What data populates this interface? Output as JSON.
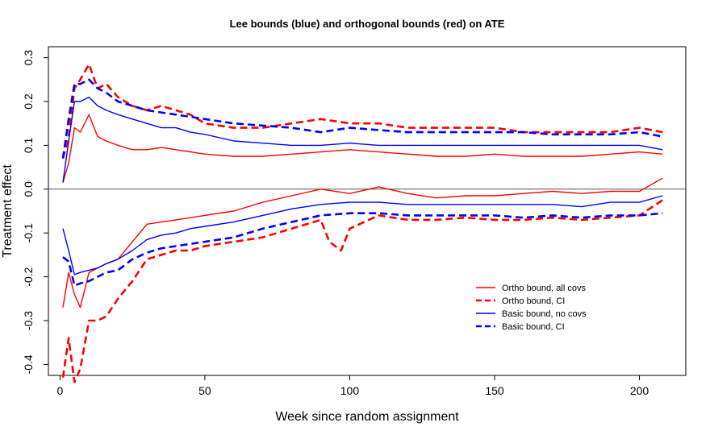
{
  "chart_data": {
    "type": "line",
    "title": "Lee bounds (blue) and orthogonal bounds (red) on ATE",
    "xlabel": "Week since random assignment",
    "ylabel": "Treatment effect",
    "xlim": [
      -4,
      216
    ],
    "ylim": [
      -0.425,
      0.325
    ],
    "x_ticks": [
      0,
      50,
      100,
      150,
      200
    ],
    "x_tick_labels": [
      "0",
      "50",
      "100",
      "150",
      "200"
    ],
    "y_ticks": [
      0.3,
      0.2,
      0.1,
      0.0,
      -0.1,
      -0.2,
      -0.3,
      -0.4
    ],
    "y_tick_labels": [
      "0.3",
      "0.2",
      "0.1",
      "0.0",
      "-0.1",
      "-0.2",
      "-0.3",
      "-0.4"
    ],
    "reference_line_y": 0,
    "legend_position": "lower-right",
    "legend": [
      {
        "label": "Ortho bound, all covs",
        "color": "#ff0000",
        "style": "solid"
      },
      {
        "label": "Ortho bound, CI",
        "color": "#ff0000",
        "style": "dashed"
      },
      {
        "label": "Basic bound, no covs",
        "color": "#0000ff",
        "style": "solid"
      },
      {
        "label": "Basic bound, CI",
        "color": "#0000ff",
        "style": "dashed"
      }
    ],
    "series": [
      {
        "group": "Ortho bound, all covs",
        "color": "#ff0000",
        "style": "solid",
        "x": [
          1,
          3,
          5,
          7,
          10,
          13,
          16,
          20,
          25,
          30,
          35,
          40,
          45,
          50,
          60,
          70,
          80,
          90,
          100,
          110,
          120,
          130,
          140,
          150,
          160,
          170,
          180,
          190,
          200,
          208
        ],
        "y": [
          0.015,
          0.06,
          0.14,
          0.13,
          0.17,
          0.12,
          0.11,
          0.1,
          0.09,
          0.09,
          0.095,
          0.09,
          0.085,
          0.08,
          0.075,
          0.075,
          0.08,
          0.085,
          0.09,
          0.085,
          0.08,
          0.075,
          0.075,
          0.08,
          0.075,
          0.075,
          0.075,
          0.08,
          0.085,
          0.08
        ]
      },
      {
        "group": "Ortho bound, all covs",
        "color": "#ff0000",
        "style": "solid",
        "x": [
          1,
          3,
          5,
          7,
          10,
          13,
          16,
          20,
          25,
          30,
          35,
          40,
          45,
          50,
          60,
          70,
          80,
          90,
          100,
          110,
          120,
          130,
          140,
          150,
          160,
          170,
          180,
          190,
          200,
          208
        ],
        "y": [
          -0.27,
          -0.19,
          -0.24,
          -0.27,
          -0.19,
          -0.18,
          -0.17,
          -0.16,
          -0.12,
          -0.08,
          -0.075,
          -0.07,
          -0.065,
          -0.06,
          -0.05,
          -0.03,
          -0.015,
          0.0,
          -0.01,
          0.005,
          -0.01,
          -0.02,
          -0.015,
          -0.015,
          -0.01,
          -0.005,
          -0.01,
          -0.005,
          -0.005,
          0.025
        ]
      },
      {
        "group": "Ortho bound, CI",
        "color": "#ff0000",
        "style": "dashed",
        "x": [
          1,
          3,
          5,
          7,
          10,
          13,
          16,
          20,
          25,
          30,
          35,
          40,
          45,
          50,
          60,
          70,
          80,
          90,
          100,
          110,
          120,
          130,
          140,
          150,
          160,
          170,
          180,
          190,
          200,
          208
        ],
        "y": [
          0.07,
          0.12,
          0.23,
          0.25,
          0.285,
          0.23,
          0.24,
          0.21,
          0.19,
          0.18,
          0.19,
          0.18,
          0.17,
          0.15,
          0.14,
          0.14,
          0.15,
          0.16,
          0.15,
          0.15,
          0.14,
          0.14,
          0.14,
          0.14,
          0.13,
          0.13,
          0.13,
          0.13,
          0.14,
          0.13
        ]
      },
      {
        "group": "Ortho bound, CI",
        "color": "#ff0000",
        "style": "dashed",
        "x": [
          1,
          3,
          5,
          7,
          10,
          13,
          16,
          20,
          25,
          30,
          35,
          40,
          45,
          50,
          60,
          70,
          80,
          90,
          93,
          97,
          100,
          110,
          120,
          130,
          140,
          150,
          160,
          170,
          180,
          190,
          200,
          208
        ],
        "y": [
          -0.43,
          -0.34,
          -0.44,
          -0.41,
          -0.3,
          -0.3,
          -0.29,
          -0.25,
          -0.21,
          -0.16,
          -0.15,
          -0.14,
          -0.14,
          -0.13,
          -0.12,
          -0.11,
          -0.09,
          -0.07,
          -0.12,
          -0.14,
          -0.09,
          -0.06,
          -0.07,
          -0.07,
          -0.065,
          -0.07,
          -0.07,
          -0.065,
          -0.07,
          -0.065,
          -0.06,
          -0.025
        ]
      },
      {
        "group": "Basic bound, no covs",
        "color": "#0000ff",
        "style": "solid",
        "x": [
          1,
          3,
          5,
          7,
          10,
          13,
          16,
          20,
          25,
          30,
          35,
          40,
          45,
          50,
          60,
          70,
          80,
          90,
          100,
          110,
          120,
          130,
          140,
          150,
          160,
          170,
          180,
          190,
          200,
          208
        ],
        "y": [
          0.015,
          0.11,
          0.2,
          0.2,
          0.21,
          0.19,
          0.18,
          0.17,
          0.16,
          0.15,
          0.14,
          0.14,
          0.13,
          0.125,
          0.11,
          0.105,
          0.1,
          0.1,
          0.105,
          0.1,
          0.1,
          0.1,
          0.1,
          0.1,
          0.1,
          0.1,
          0.1,
          0.1,
          0.1,
          0.09
        ]
      },
      {
        "group": "Basic bound, no covs",
        "color": "#0000ff",
        "style": "solid",
        "x": [
          1,
          3,
          5,
          7,
          10,
          13,
          16,
          20,
          25,
          30,
          35,
          40,
          45,
          50,
          60,
          70,
          80,
          90,
          100,
          110,
          120,
          130,
          140,
          150,
          160,
          170,
          180,
          190,
          200,
          208
        ],
        "y": [
          -0.09,
          -0.14,
          -0.195,
          -0.19,
          -0.185,
          -0.18,
          -0.17,
          -0.16,
          -0.14,
          -0.115,
          -0.105,
          -0.1,
          -0.09,
          -0.085,
          -0.075,
          -0.06,
          -0.045,
          -0.035,
          -0.03,
          -0.03,
          -0.035,
          -0.035,
          -0.035,
          -0.035,
          -0.035,
          -0.035,
          -0.04,
          -0.03,
          -0.03,
          -0.015
        ]
      },
      {
        "group": "Basic bound, CI",
        "color": "#0000ff",
        "style": "dashed",
        "x": [
          1,
          3,
          5,
          7,
          10,
          13,
          16,
          20,
          25,
          30,
          35,
          40,
          45,
          50,
          60,
          70,
          80,
          90,
          100,
          110,
          120,
          130,
          140,
          150,
          160,
          170,
          180,
          190,
          200,
          208
        ],
        "y": [
          0.07,
          0.16,
          0.24,
          0.24,
          0.25,
          0.23,
          0.22,
          0.2,
          0.19,
          0.18,
          0.175,
          0.17,
          0.165,
          0.16,
          0.15,
          0.145,
          0.14,
          0.13,
          0.14,
          0.135,
          0.13,
          0.13,
          0.13,
          0.13,
          0.13,
          0.125,
          0.125,
          0.125,
          0.13,
          0.12
        ]
      },
      {
        "group": "Basic bound, CI",
        "color": "#0000ff",
        "style": "dashed",
        "x": [
          1,
          3,
          5,
          7,
          10,
          13,
          16,
          20,
          25,
          30,
          35,
          40,
          45,
          50,
          60,
          70,
          80,
          90,
          100,
          110,
          120,
          130,
          140,
          150,
          160,
          170,
          180,
          190,
          200,
          208
        ],
        "y": [
          -0.155,
          -0.165,
          -0.22,
          -0.215,
          -0.21,
          -0.2,
          -0.19,
          -0.185,
          -0.16,
          -0.145,
          -0.135,
          -0.13,
          -0.125,
          -0.12,
          -0.11,
          -0.09,
          -0.075,
          -0.06,
          -0.055,
          -0.055,
          -0.06,
          -0.06,
          -0.06,
          -0.06,
          -0.065,
          -0.06,
          -0.065,
          -0.06,
          -0.06,
          -0.055
        ]
      }
    ]
  }
}
